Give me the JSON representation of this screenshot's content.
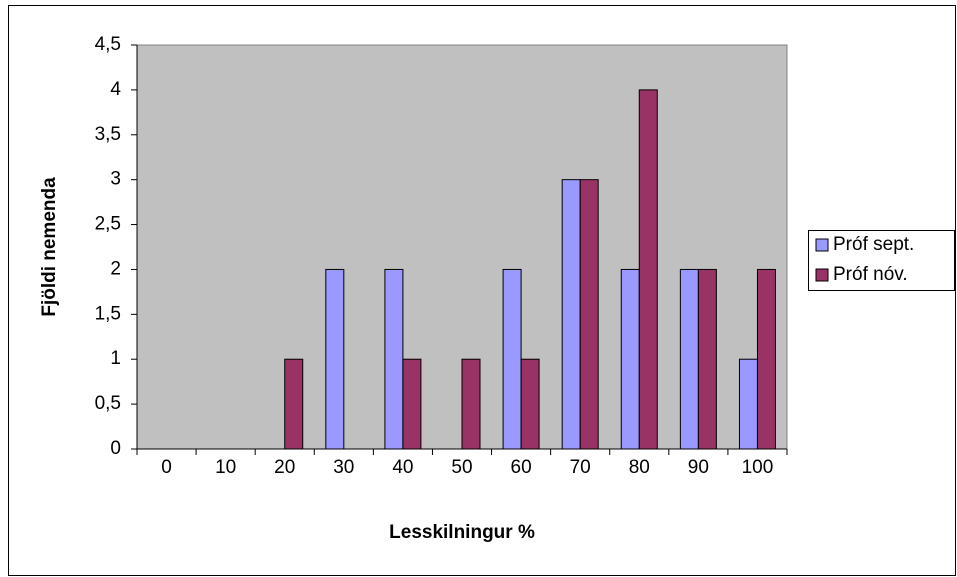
{
  "chart_data": {
    "type": "bar",
    "x_label": "Lesskilningur %",
    "y_label": "Fjöldi nemenda",
    "categories": [
      "0",
      "10",
      "20",
      "30",
      "40",
      "50",
      "60",
      "70",
      "80",
      "90",
      "100"
    ],
    "series": [
      {
        "name": "Próf sept.",
        "color": "#9999ff",
        "values": [
          0,
          0,
          0,
          2,
          2,
          0,
          2,
          3,
          2,
          2,
          1
        ]
      },
      {
        "name": "Próf nóv.",
        "color": "#993366",
        "values": [
          0,
          0,
          1,
          0,
          1,
          1,
          1,
          3,
          4,
          2,
          2
        ]
      }
    ],
    "ylim": [
      0,
      4.5
    ],
    "yticks": [
      0,
      {
        "value": 0.5,
        "label": "0,5"
      },
      1,
      {
        "value": 1.5,
        "label": "1,5"
      },
      2,
      {
        "value": 2.5,
        "label": "2,5"
      },
      3,
      {
        "value": 3.5,
        "label": "3,5"
      },
      4,
      {
        "value": 4.5,
        "label": "4,5"
      }
    ],
    "grid": false,
    "legend": "right"
  }
}
